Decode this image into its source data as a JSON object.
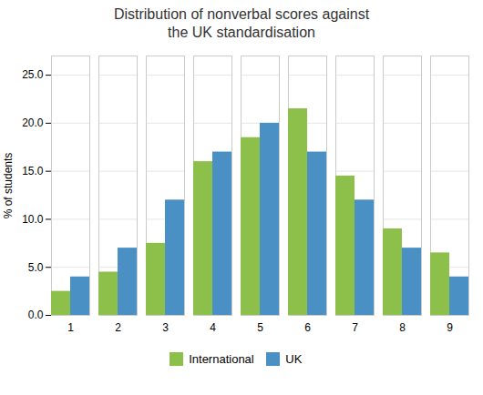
{
  "chart_data": {
    "type": "bar",
    "title": "Distribution of nonverbal scores against\nthe UK standardisation",
    "categories": [
      1,
      2,
      3,
      4,
      5,
      6,
      7,
      8,
      9
    ],
    "series": [
      {
        "name": "International",
        "color": "#8DC04A",
        "values": [
          2.5,
          4.5,
          7.5,
          16.0,
          18.5,
          21.5,
          14.5,
          9.0,
          6.5
        ]
      },
      {
        "name": "UK",
        "color": "#4A90C4",
        "values": [
          4.0,
          7.0,
          12.0,
          17.0,
          20.0,
          17.0,
          12.0,
          7.0,
          4.0
        ]
      }
    ],
    "ylabel": "% of students",
    "ylim": [
      0,
      27
    ],
    "yticks": [
      {
        "value": 0,
        "label": "0.0"
      },
      {
        "value": 5,
        "label": "5.0"
      },
      {
        "value": 10,
        "label": "10.0"
      },
      {
        "value": 15,
        "label": "15.0"
      },
      {
        "value": 20,
        "label": "20.0"
      },
      {
        "value": 25,
        "label": "25.0"
      }
    ],
    "grid": true,
    "legend": "bottom"
  }
}
